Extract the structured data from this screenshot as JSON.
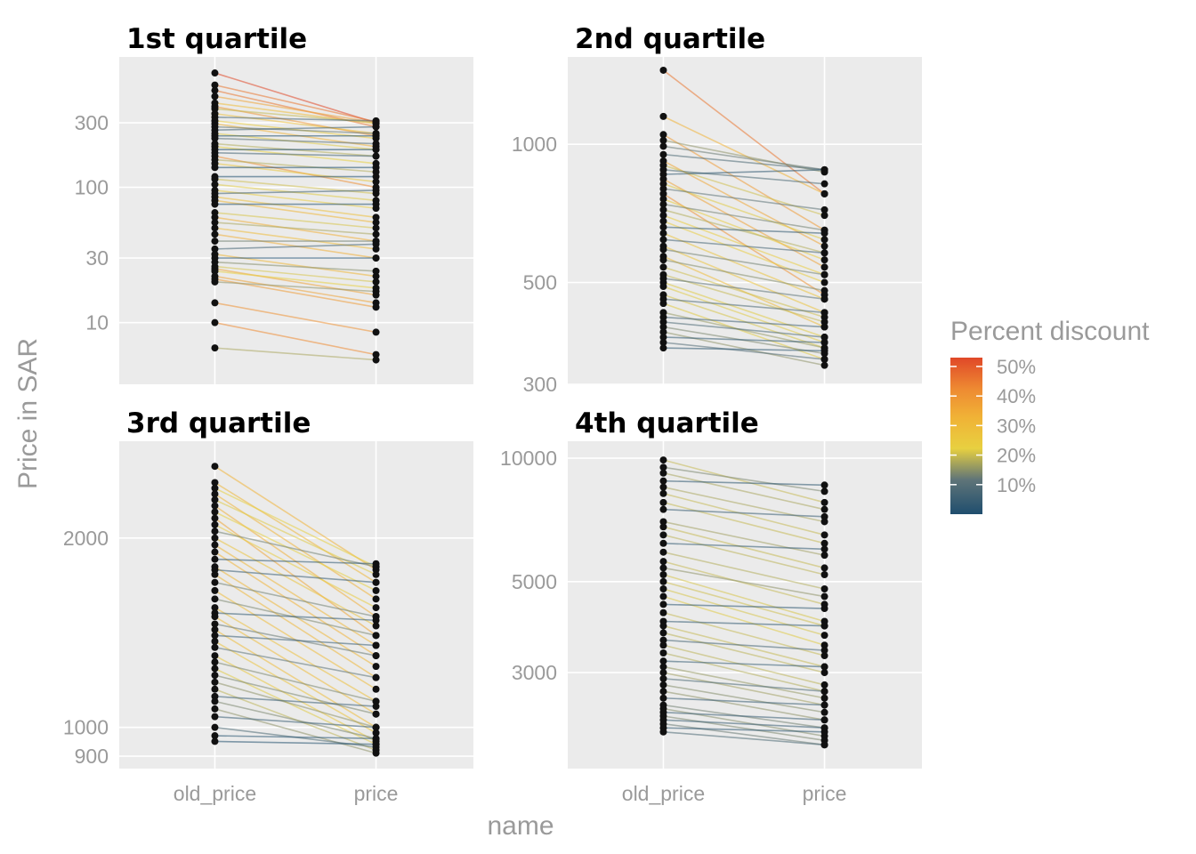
{
  "chart_data": {
    "type": "line",
    "facet_note": "slope chart faceted by price quartile",
    "xlabel": "name",
    "ylabel": "Price in SAR",
    "x_categories": [
      "old_price",
      "price"
    ],
    "y_scale": "log10",
    "legend": {
      "title": "Percent discount",
      "placement": "right",
      "labels": [
        "50%",
        "40%",
        "30%",
        "20%",
        "10%"
      ],
      "values": [
        0.5,
        0.4,
        0.3,
        0.2,
        0.1
      ],
      "range": [
        0.0,
        0.53
      ],
      "colors": [
        "#1f4e6e",
        "#8a9a7e",
        "#e8d040",
        "#f0a030",
        "#e04828"
      ]
    },
    "panels": [
      {
        "title": "1st quartile",
        "y_ticks": [
          10,
          30,
          100,
          300
        ],
        "y_tick_labels": [
          "10",
          "30",
          "100",
          "300"
        ],
        "ylim": [
          3.5,
          920
        ],
        "pairs": [
          [
            700,
            300,
            0.57
          ],
          [
            570,
            305,
            0.46
          ],
          [
            520,
            280,
            0.46
          ],
          [
            470,
            300,
            0.36
          ],
          [
            420,
            295,
            0.3
          ],
          [
            395,
            240,
            0.39
          ],
          [
            380,
            300,
            0.21
          ],
          [
            350,
            250,
            0.29
          ],
          [
            330,
            310,
            0.06
          ],
          [
            310,
            230,
            0.26
          ],
          [
            295,
            200,
            0.32
          ],
          [
            280,
            250,
            0.11
          ],
          [
            265,
            280,
            0.05
          ],
          [
            250,
            190,
            0.24
          ],
          [
            240,
            240,
            0.0
          ],
          [
            230,
            210,
            0.09
          ],
          [
            210,
            170,
            0.19
          ],
          [
            200,
            150,
            0.25
          ],
          [
            190,
            190,
            0.0
          ],
          [
            180,
            170,
            0.06
          ],
          [
            170,
            100,
            0.41
          ],
          [
            160,
            130,
            0.19
          ],
          [
            150,
            110,
            0.27
          ],
          [
            140,
            140,
            0.0
          ],
          [
            120,
            120,
            0.0
          ],
          [
            115,
            90,
            0.22
          ],
          [
            105,
            80,
            0.24
          ],
          [
            95,
            70,
            0.26
          ],
          [
            90,
            95,
            0.05
          ],
          [
            85,
            60,
            0.29
          ],
          [
            80,
            55,
            0.31
          ],
          [
            75,
            75,
            0.0
          ],
          [
            65,
            50,
            0.23
          ],
          [
            60,
            40,
            0.33
          ],
          [
            55,
            45,
            0.18
          ],
          [
            50,
            35,
            0.3
          ],
          [
            45,
            30,
            0.33
          ],
          [
            40,
            40,
            0.12
          ],
          [
            35,
            38,
            0.06
          ],
          [
            32,
            22,
            0.31
          ],
          [
            30,
            30,
            0.0
          ],
          [
            28,
            24,
            0.14
          ],
          [
            26,
            20,
            0.23
          ],
          [
            25,
            16,
            0.36
          ],
          [
            24,
            18,
            0.25
          ],
          [
            22,
            14,
            0.36
          ],
          [
            21,
            13,
            0.38
          ],
          [
            20,
            17,
            0.15
          ],
          [
            14,
            8.5,
            0.4
          ],
          [
            10,
            5.8,
            0.42
          ],
          [
            6.5,
            5.3,
            0.18
          ]
        ]
      },
      {
        "title": "2nd quartile",
        "y_ticks": [
          300,
          500,
          1000
        ],
        "y_tick_labels": [
          "300",
          "500",
          "1000"
        ],
        "ylim": [
          300,
          1550
        ],
        "pairs": [
          [
            1450,
            780,
            0.46
          ],
          [
            1150,
            780,
            0.32
          ],
          [
            1050,
            650,
            0.38
          ],
          [
            1020,
            870,
            0.15
          ],
          [
            990,
            880,
            0.11
          ],
          [
            950,
            880,
            0.07
          ],
          [
            920,
            600,
            0.35
          ],
          [
            900,
            700,
            0.22
          ],
          [
            880,
            820,
            0.07
          ],
          [
            860,
            880,
            0.02
          ],
          [
            840,
            540,
            0.36
          ],
          [
            820,
            620,
            0.24
          ],
          [
            800,
            720,
            0.1
          ],
          [
            780,
            470,
            0.4
          ],
          [
            760,
            560,
            0.26
          ],
          [
            740,
            650,
            0.12
          ],
          [
            720,
            580,
            0.19
          ],
          [
            700,
            520,
            0.26
          ],
          [
            680,
            500,
            0.26
          ],
          [
            660,
            640,
            0.03
          ],
          [
            640,
            460,
            0.28
          ],
          [
            620,
            580,
            0.06
          ],
          [
            600,
            430,
            0.28
          ],
          [
            590,
            520,
            0.12
          ],
          [
            570,
            400,
            0.3
          ],
          [
            560,
            480,
            0.14
          ],
          [
            540,
            420,
            0.22
          ],
          [
            520,
            410,
            0.21
          ],
          [
            510,
            460,
            0.1
          ],
          [
            500,
            380,
            0.24
          ],
          [
            490,
            370,
            0.24
          ],
          [
            470,
            360,
            0.23
          ],
          [
            460,
            430,
            0.07
          ],
          [
            450,
            340,
            0.24
          ],
          [
            430,
            360,
            0.16
          ],
          [
            420,
            400,
            0.05
          ],
          [
            410,
            380,
            0.07
          ],
          [
            400,
            350,
            0.13
          ],
          [
            390,
            330,
            0.15
          ],
          [
            380,
            370,
            0.03
          ],
          [
            370,
            340,
            0.08
          ],
          [
            360,
            355,
            0.02
          ]
        ]
      },
      {
        "title": "3rd quartile",
        "y_ticks": [
          900,
          1000,
          2000
        ],
        "y_tick_labels": [
          "900",
          "1000",
          "2000"
        ],
        "ylim": [
          860,
          2850
        ],
        "pairs": [
          [
            2600,
            1780,
            0.32
          ],
          [
            2450,
            1700,
            0.31
          ],
          [
            2400,
            1800,
            0.25
          ],
          [
            2350,
            1600,
            0.32
          ],
          [
            2300,
            1750,
            0.24
          ],
          [
            2250,
            1500,
            0.33
          ],
          [
            2200,
            1650,
            0.25
          ],
          [
            2150,
            1400,
            0.35
          ],
          [
            2100,
            1550,
            0.26
          ],
          [
            2050,
            1800,
            0.12
          ],
          [
            2000,
            1450,
            0.28
          ],
          [
            1950,
            1350,
            0.31
          ],
          [
            1900,
            1300,
            0.32
          ],
          [
            1850,
            1820,
            0.02
          ],
          [
            1800,
            1250,
            0.31
          ],
          [
            1780,
            1700,
            0.04
          ],
          [
            1750,
            1200,
            0.31
          ],
          [
            1700,
            1500,
            0.12
          ],
          [
            1650,
            1150,
            0.3
          ],
          [
            1600,
            1400,
            0.13
          ],
          [
            1550,
            1100,
            0.29
          ],
          [
            1520,
            1480,
            0.03
          ],
          [
            1500,
            1050,
            0.3
          ],
          [
            1460,
            1300,
            0.11
          ],
          [
            1430,
            1000,
            0.3
          ],
          [
            1400,
            1350,
            0.04
          ],
          [
            1370,
            980,
            0.28
          ],
          [
            1340,
            1200,
            0.1
          ],
          [
            1300,
            950,
            0.27
          ],
          [
            1270,
            1100,
            0.13
          ],
          [
            1240,
            940,
            0.24
          ],
          [
            1210,
            1050,
            0.13
          ],
          [
            1180,
            1000,
            0.15
          ],
          [
            1150,
            920,
            0.2
          ],
          [
            1120,
            1080,
            0.04
          ],
          [
            1100,
            960,
            0.13
          ],
          [
            1070,
            910,
            0.15
          ],
          [
            1040,
            1000,
            0.04
          ],
          [
            1000,
            930,
            0.07
          ],
          [
            970,
            960,
            0.01
          ],
          [
            950,
            940,
            0.01
          ]
        ]
      },
      {
        "title": "4th quartile",
        "y_ticks": [
          3000,
          5000,
          10000
        ],
        "y_tick_labels": [
          "3000",
          "5000",
          "10000"
        ],
        "ylim": [
          1750,
          11000
        ],
        "pairs": [
          [
            9900,
            7800,
            0.21
          ],
          [
            9500,
            8300,
            0.13
          ],
          [
            9200,
            7500,
            0.18
          ],
          [
            8800,
            8600,
            0.02
          ],
          [
            8500,
            7000,
            0.18
          ],
          [
            8200,
            6500,
            0.21
          ],
          [
            7800,
            6200,
            0.21
          ],
          [
            7500,
            7200,
            0.04
          ],
          [
            7000,
            5800,
            0.17
          ],
          [
            6800,
            5400,
            0.21
          ],
          [
            6500,
            5200,
            0.2
          ],
          [
            6200,
            6000,
            0.03
          ],
          [
            5900,
            4800,
            0.19
          ],
          [
            5600,
            4400,
            0.21
          ],
          [
            5400,
            4600,
            0.15
          ],
          [
            5200,
            4000,
            0.23
          ],
          [
            5000,
            3900,
            0.22
          ],
          [
            4800,
            3700,
            0.23
          ],
          [
            4600,
            3500,
            0.24
          ],
          [
            4400,
            4300,
            0.02
          ],
          [
            4200,
            3300,
            0.21
          ],
          [
            4000,
            3900,
            0.03
          ],
          [
            3900,
            3100,
            0.21
          ],
          [
            3750,
            3000,
            0.2
          ],
          [
            3600,
            3400,
            0.06
          ],
          [
            3500,
            2800,
            0.2
          ],
          [
            3350,
            2700,
            0.19
          ],
          [
            3200,
            3100,
            0.03
          ],
          [
            3100,
            2600,
            0.16
          ],
          [
            3000,
            2500,
            0.17
          ],
          [
            2900,
            2700,
            0.07
          ],
          [
            2800,
            2400,
            0.14
          ],
          [
            2700,
            2300,
            0.15
          ],
          [
            2600,
            2500,
            0.04
          ],
          [
            2500,
            2200,
            0.12
          ],
          [
            2450,
            2100,
            0.14
          ],
          [
            2400,
            2300,
            0.04
          ],
          [
            2350,
            2050,
            0.13
          ],
          [
            2300,
            2200,
            0.04
          ],
          [
            2250,
            2000,
            0.11
          ],
          [
            2200,
            2150,
            0.02
          ],
          [
            2150,
            2000,
            0.07
          ]
        ]
      }
    ]
  }
}
